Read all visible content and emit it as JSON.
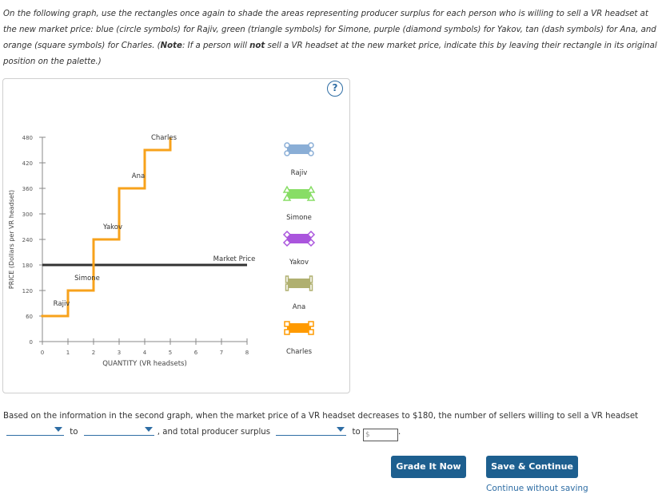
{
  "instructions": {
    "part1": "On the following graph, use the rectangles once again to shade the areas representing producer surplus for each person who is willing to sell a VR headset at the new market price: blue (circle symbols) for Rajiv, green (triangle symbols) for Simone, purple (diamond symbols) for Yakov, tan (dash symbols) for Ana, and orange (square symbols) for Charles. (",
    "note_label": "Note",
    "part2": ": If a person will ",
    "not_word": "not",
    "part3": " sell a VR headset at the new market price, indicate this by leaving their rectangle in its original position on the palette.)"
  },
  "help_label": "?",
  "chart_data": {
    "type": "line",
    "xlabel": "QUANTITY (VR headsets)",
    "ylabel": "PRICE (Dollars per VR headset)",
    "xlim": [
      0,
      8
    ],
    "ylim": [
      0,
      480
    ],
    "x_ticks": [
      "0",
      "1",
      "2",
      "3",
      "4",
      "5",
      "6",
      "7",
      "8"
    ],
    "y_ticks": [
      "0",
      "60",
      "120",
      "180",
      "240",
      "300",
      "360",
      "420",
      "480"
    ],
    "supply_steps": [
      {
        "name": "Rajiv",
        "x": [
          0,
          1
        ],
        "price": 60
      },
      {
        "name": "Simone",
        "x": [
          1,
          2
        ],
        "price": 120
      },
      {
        "name": "Yakov",
        "x": [
          2,
          3
        ],
        "price": 240
      },
      {
        "name": "Ana",
        "x": [
          3,
          4
        ],
        "price": 360
      },
      {
        "name": "Charles",
        "x": [
          4,
          5
        ],
        "price": 450
      }
    ],
    "supply_top": 480,
    "market_price": 180,
    "market_price_label": "Market Price",
    "supply_color": "#f7a21b",
    "market_color": "#333333"
  },
  "palette": [
    {
      "name": "Rajiv",
      "color": "#8aaed6",
      "symbol": "circle"
    },
    {
      "name": "Simone",
      "color": "#88dd66",
      "symbol": "triangle"
    },
    {
      "name": "Yakov",
      "color": "#aa55dd",
      "symbol": "diamond"
    },
    {
      "name": "Ana",
      "color": "#b0b070",
      "symbol": "dash"
    },
    {
      "name": "Charles",
      "color": "#ff9a00",
      "symbol": "square"
    }
  ],
  "question": {
    "part1": "Based on the information in the second graph, when the market price of a VR headset decreases to $180, the number of sellers willing to sell a VR headset",
    "to1": "to",
    "part2": ", and total producer surplus",
    "to2": "to",
    "dollar_placeholder": "$",
    "end": "."
  },
  "buttons": {
    "grade": "Grade It Now",
    "save": "Save & Continue",
    "continue_link": "Continue without saving"
  }
}
